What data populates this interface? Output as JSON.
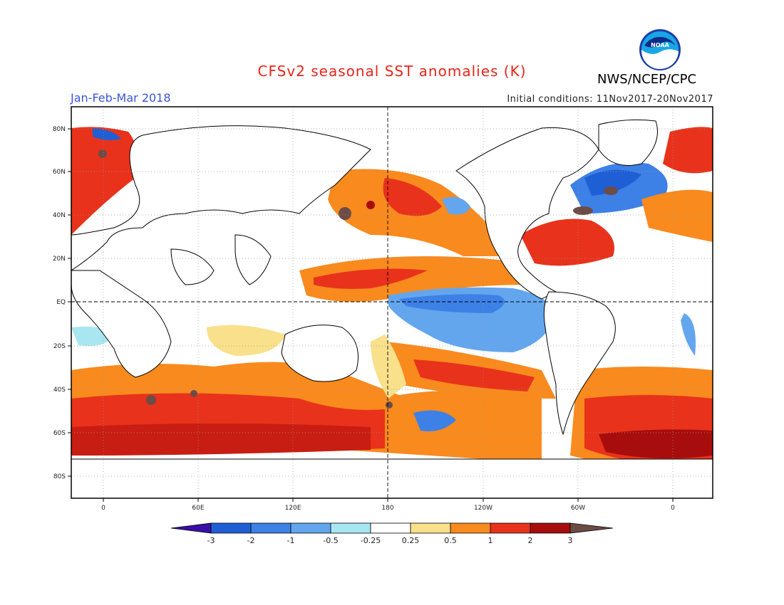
{
  "header": {
    "title": "CFSv2 seasonal SST anomalies (K)",
    "period": "Jan-Feb-Mar 2018",
    "initial_conditions": "Initial conditions: 11Nov2017-20Nov2017",
    "agency": "NWS/NCEP/CPC",
    "logo_text": "NOAA"
  },
  "map": {
    "lat_labels": [
      "80N",
      "60N",
      "40N",
      "20N",
      "EQ",
      "20S",
      "40S",
      "60S",
      "80S"
    ],
    "lon_labels": [
      "0",
      "60E",
      "120E",
      "180",
      "120W",
      "60W",
      "0"
    ],
    "reference_lines": [
      "EQ",
      "180"
    ],
    "grid": "dotted"
  },
  "colorbar": {
    "unit": "K",
    "ticks": [
      "-3",
      "-2",
      "-1",
      "-0.5",
      "-0.25",
      "0.25",
      "0.5",
      "1",
      "2",
      "3"
    ],
    "colors": [
      "#3a0ea8",
      "#1f5fd6",
      "#3d80e6",
      "#63a6ee",
      "#a8e6f2",
      "#ffffff",
      "#f9e08a",
      "#f98a1e",
      "#e8321b",
      "#a80d0d",
      "#6d4c46"
    ]
  }
}
